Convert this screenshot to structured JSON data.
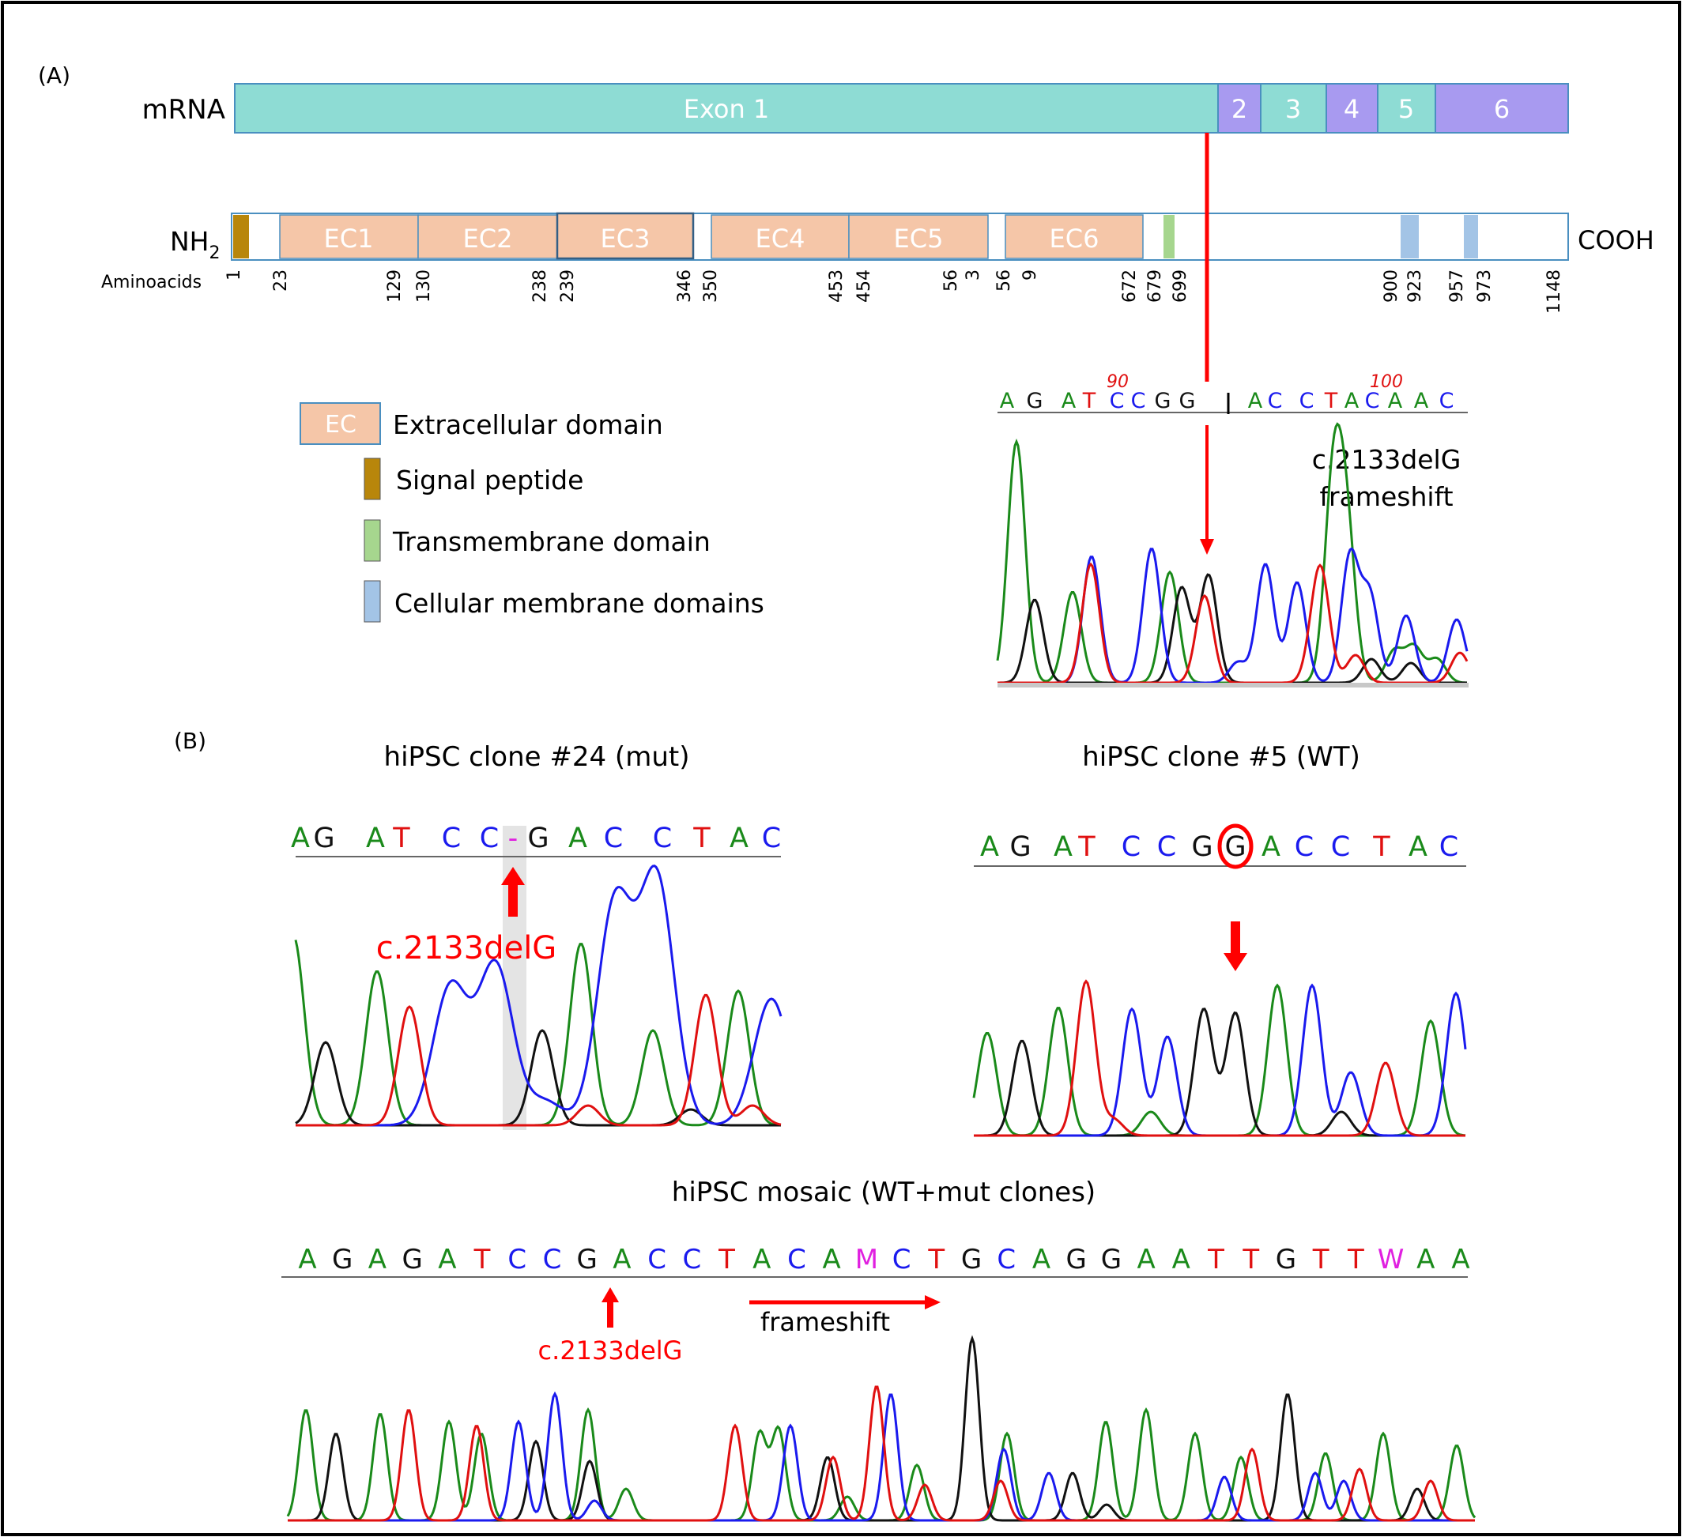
{
  "panel_a": {
    "label": "(A)",
    "mrna": {
      "row_label": "mRNA",
      "exons": [
        {
          "label": "Exon 1",
          "color": "#8edcd4"
        },
        {
          "label": "2",
          "color": "#a89af0"
        },
        {
          "label": "3",
          "color": "#8edcd4"
        },
        {
          "label": "4",
          "color": "#a89af0"
        },
        {
          "label": "5",
          "color": "#8edcd4"
        },
        {
          "label": "6",
          "color": "#a89af0"
        }
      ]
    },
    "protein": {
      "nh2": "NH",
      "nh2_sub": "2",
      "cooh": "COOH",
      "aa_label": "Aminoacids",
      "domains": [
        "EC1",
        "EC2",
        "EC3",
        "EC4",
        "EC5",
        "EC6"
      ],
      "positions": [
        "1",
        "23",
        "129",
        "130",
        "238",
        "239",
        "346",
        "350",
        "453",
        "454",
        "56",
        "3",
        "56",
        "9",
        "672",
        "679",
        "699",
        "900",
        "923",
        "957",
        "973",
        "1148"
      ]
    },
    "legend": [
      {
        "box": "EC",
        "label": "Extracellular domain",
        "color": "#f5c6a8"
      },
      {
        "box": "",
        "label": "Signal peptide",
        "color": "#b8860b"
      },
      {
        "box": "",
        "label": "Transmembrane domain",
        "color": "#a6d68e"
      },
      {
        "box": "",
        "label": "Cellular membrane domains",
        "color": "#a3c4e6"
      }
    ],
    "chromatogram": {
      "ruler_90": "90",
      "ruler_100": "100",
      "bases": [
        "A",
        "G",
        "A",
        "T",
        "C",
        "C",
        "G",
        "G",
        "A",
        "C",
        "C",
        "T",
        "A",
        "C",
        "A",
        "A",
        "C"
      ],
      "annotation_1": "c.2133delG",
      "annotation_2": "frameshift"
    }
  },
  "panel_b": {
    "label": "(B)",
    "clone24": {
      "title": "hiPSC clone #24 (mut)",
      "bases": [
        "A",
        "G",
        "A",
        "T",
        "C",
        "C",
        "-",
        "G",
        "A",
        "C",
        "C",
        "T",
        "A",
        "C"
      ],
      "annotation": "c.2133delG"
    },
    "clone5": {
      "title": "hiPSC clone #5 (WT)",
      "bases": [
        "A",
        "G",
        "A",
        "T",
        "C",
        "C",
        "G",
        "G",
        "A",
        "C",
        "C",
        "T",
        "A",
        "C"
      ]
    },
    "mosaic": {
      "title": "hiPSC mosaic (WT+mut clones)",
      "bases": [
        "A",
        "G",
        "A",
        "G",
        "A",
        "T",
        "C",
        "C",
        "G",
        "A",
        "C",
        "C",
        "T",
        "A",
        "C",
        "A",
        "M",
        "C",
        "T",
        "G",
        "C",
        "A",
        "G",
        "G",
        "A",
        "A",
        "T",
        "T",
        "G",
        "T",
        "T",
        "W",
        "A",
        "A"
      ],
      "annotation": "c.2133delG",
      "frameshift": "frameshift"
    }
  },
  "colors": {
    "A": "#1a8a1a",
    "C": "#1a1aee",
    "G": "#111111",
    "T": "#e01010",
    "M": "#e020e0",
    "W": "#e020e0",
    "-": "#e020e0",
    "red": "#ff0000"
  }
}
